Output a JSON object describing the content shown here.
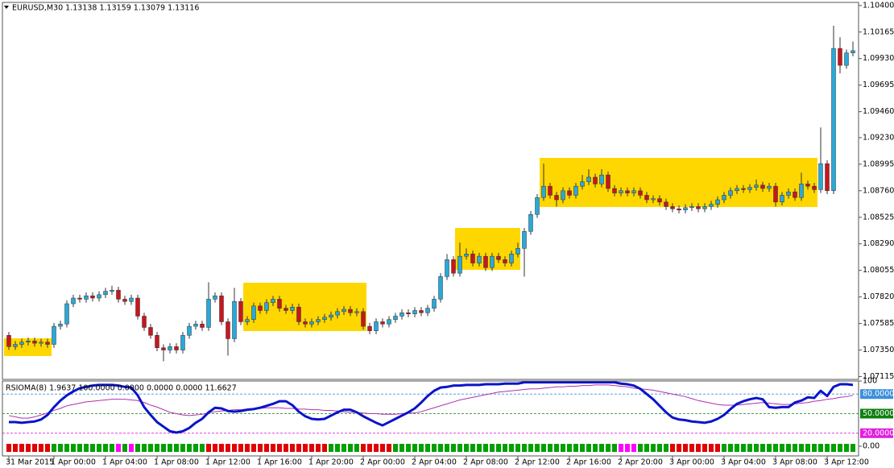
{
  "chart_data": [
    {
      "type": "candlestick",
      "title": "EURUSD,M30  1.13138 1.13159 1.13079 1.13116",
      "categories": [
        "31 Mar 2015",
        null,
        null,
        null,
        null,
        null,
        null,
        "1 Apr 00:00",
        null,
        null,
        null,
        null,
        null,
        null,
        null,
        "1 Apr 04:00",
        null,
        null,
        null,
        null,
        null,
        null,
        null,
        "1 Apr 08:00",
        null,
        null,
        null,
        null,
        null,
        null,
        null,
        "1 Apr 12:00",
        null,
        null,
        null,
        null,
        null,
        null,
        null,
        "1 Apr 16:00",
        null,
        null,
        null,
        null,
        null,
        null,
        null,
        "1 Apr 20:00",
        null,
        null,
        null,
        null,
        null,
        null,
        null,
        "2 Apr 00:00",
        null,
        null,
        null,
        null,
        null,
        null,
        null,
        "2 Apr 04:00",
        null,
        null,
        null,
        null,
        null,
        null,
        null,
        "2 Apr 08:00",
        null,
        null,
        null,
        null,
        null,
        null,
        null,
        "2 Apr 12:00",
        null,
        null,
        null,
        null,
        null,
        null,
        null,
        "2 Apr 16:00",
        null,
        null,
        null,
        null,
        null,
        null,
        null,
        "2 Apr 20:00",
        null,
        null,
        null,
        null,
        null,
        null,
        null,
        "3 Apr 00:00",
        null,
        null,
        null,
        null,
        null,
        null,
        null,
        "3 Apr 04:00",
        null,
        null,
        null,
        null,
        null,
        null,
        null,
        "3 Apr 08:00",
        null,
        null,
        null,
        null,
        null,
        null,
        null,
        "3 Apr 12:00",
        null,
        null,
        null,
        null
      ],
      "open": [
        1.0748,
        1.0738,
        1.074,
        1.0742,
        1.0743,
        1.0741,
        1.0742,
        1.074,
        1.0756,
        1.0758,
        1.0776,
        1.0781,
        1.078,
        1.0783,
        1.0781,
        1.0784,
        1.0787,
        1.0788,
        1.078,
        1.0778,
        1.0781,
        1.0765,
        1.0755,
        1.0748,
        1.0737,
        1.0735,
        1.0738,
        1.0735,
        1.0748,
        1.0756,
        1.0758,
        1.0755,
        1.078,
        1.0783,
        1.076,
        1.0745,
        1.0778,
        1.076,
        1.0762,
        1.0774,
        1.077,
        1.0777,
        1.078,
        1.0772,
        1.077,
        1.0773,
        1.076,
        1.0758,
        1.076,
        1.0762,
        1.0764,
        1.0766,
        1.0769,
        1.0771,
        1.0768,
        1.0769,
        1.0756,
        1.0752,
        1.076,
        1.0758,
        1.0762,
        1.0765,
        1.0768,
        1.0767,
        1.077,
        1.0768,
        1.0772,
        1.078,
        1.08,
        1.0815,
        1.0803,
        1.0818,
        1.082,
        1.0812,
        1.0818,
        1.0808,
        1.0818,
        1.0815,
        1.0812,
        1.082,
        1.0825,
        1.084,
        1.0855,
        1.087,
        1.088,
        1.0872,
        1.0868,
        1.0876,
        1.0872,
        1.088,
        1.0884,
        1.0888,
        1.0882,
        1.089,
        1.0878,
        1.0874,
        1.0876,
        1.0874,
        1.0876,
        1.0872,
        1.0868,
        1.0869,
        1.0866,
        1.0862,
        1.086,
        1.0859,
        1.0861,
        1.0862,
        1.086,
        1.0862,
        1.0864,
        1.0868,
        1.0872,
        1.0876,
        1.0878,
        1.0877,
        1.0879,
        1.0881,
        1.0878,
        1.088,
        1.0866,
        1.0872,
        1.0875,
        1.087,
        1.0882,
        1.088,
        1.0877,
        1.09,
        1.0876,
        1.1002,
        1.0987,
        1.0998
      ],
      "high": [
        1.0751,
        1.0743,
        1.0745,
        1.0746,
        1.0746,
        1.0745,
        1.0745,
        1.0759,
        1.0761,
        1.0779,
        1.0784,
        1.0784,
        1.0786,
        1.0786,
        1.0787,
        1.079,
        1.0792,
        1.0791,
        1.0783,
        1.0784,
        1.0784,
        1.0768,
        1.0758,
        1.0751,
        1.074,
        1.0741,
        1.0741,
        1.0751,
        1.0759,
        1.0761,
        1.0761,
        1.0795,
        1.0786,
        1.0786,
        1.0763,
        1.079,
        1.0781,
        1.0765,
        1.0777,
        1.0777,
        1.078,
        1.0783,
        1.0783,
        1.0775,
        1.0776,
        1.0776,
        1.0763,
        1.0763,
        1.0765,
        1.0767,
        1.0769,
        1.0772,
        1.0774,
        1.0774,
        1.0772,
        1.0772,
        1.0759,
        1.0763,
        1.0763,
        1.0765,
        1.0768,
        1.0771,
        1.0771,
        1.0773,
        1.0773,
        1.0775,
        1.0783,
        1.0803,
        1.082,
        1.0818,
        1.083,
        1.0825,
        1.0823,
        1.0821,
        1.0821,
        1.0821,
        1.0821,
        1.0818,
        1.0823,
        1.083,
        1.0843,
        1.0858,
        1.0873,
        1.09,
        1.0883,
        1.0875,
        1.0879,
        1.0879,
        1.0883,
        1.089,
        1.0895,
        1.0891,
        1.0895,
        1.0893,
        1.0881,
        1.0879,
        1.0879,
        1.0879,
        1.0879,
        1.0875,
        1.0872,
        1.0872,
        1.0869,
        1.0865,
        1.0863,
        1.0864,
        1.0865,
        1.0865,
        1.0865,
        1.0867,
        1.0871,
        1.0875,
        1.0879,
        1.0881,
        1.0881,
        1.0882,
        1.0886,
        1.0884,
        1.0883,
        1.0883,
        1.0875,
        1.0878,
        1.0878,
        1.0892,
        1.0885,
        1.0883,
        1.0932,
        1.0903,
        1.1022,
        1.1012,
        1.1001,
        1.1008
      ],
      "low": [
        1.0735,
        1.0735,
        1.0737,
        1.0739,
        1.0738,
        1.0738,
        1.0737,
        1.0737,
        1.0753,
        1.0755,
        1.0773,
        1.0777,
        1.0777,
        1.0778,
        1.0778,
        1.0781,
        1.0784,
        1.0777,
        1.0775,
        1.0775,
        1.0762,
        1.0752,
        1.0745,
        1.0734,
        1.0725,
        1.0732,
        1.0732,
        1.0732,
        1.0745,
        1.0753,
        1.0752,
        1.0752,
        1.0777,
        1.0757,
        1.073,
        1.0742,
        1.0757,
        1.0757,
        1.0759,
        1.0767,
        1.0767,
        1.0774,
        1.0769,
        1.0767,
        1.0767,
        1.0757,
        1.0755,
        1.0755,
        1.0757,
        1.0759,
        1.0761,
        1.0763,
        1.0766,
        1.0765,
        1.0765,
        1.0753,
        1.0749,
        1.0749,
        1.0755,
        1.0755,
        1.0759,
        1.0762,
        1.0764,
        1.0764,
        1.0765,
        1.0765,
        1.0769,
        1.0777,
        1.0797,
        1.08,
        1.08,
        1.0815,
        1.0809,
        1.0809,
        1.0805,
        1.0805,
        1.0812,
        1.0809,
        1.0809,
        1.0817,
        1.08,
        1.0837,
        1.0852,
        1.0867,
        1.0869,
        1.0862,
        1.0865,
        1.0869,
        1.0869,
        1.0877,
        1.0881,
        1.0879,
        1.0879,
        1.0875,
        1.0871,
        1.0871,
        1.0871,
        1.0871,
        1.0869,
        1.0865,
        1.0865,
        1.0863,
        1.0859,
        1.0857,
        1.0856,
        1.0856,
        1.0858,
        1.0857,
        1.0857,
        1.0859,
        1.0861,
        1.0865,
        1.0869,
        1.0873,
        1.0874,
        1.0874,
        1.0876,
        1.0875,
        1.0875,
        1.0862,
        1.0863,
        1.0869,
        1.0867,
        1.0867,
        1.0877,
        1.0874,
        1.0874,
        1.0873,
        1.0873,
        1.098,
        1.0984,
        1.0995
      ],
      "close": [
        1.0738,
        1.074,
        1.0742,
        1.0743,
        1.0741,
        1.0742,
        1.074,
        1.0756,
        1.0758,
        1.0776,
        1.0781,
        1.078,
        1.0783,
        1.0781,
        1.0784,
        1.0787,
        1.0788,
        1.078,
        1.0778,
        1.0781,
        1.0765,
        1.0755,
        1.0748,
        1.0737,
        1.0735,
        1.0738,
        1.0735,
        1.0748,
        1.0756,
        1.0758,
        1.0755,
        1.078,
        1.0783,
        1.076,
        1.0745,
        1.0778,
        1.076,
        1.0762,
        1.0774,
        1.077,
        1.0777,
        1.078,
        1.0772,
        1.077,
        1.0773,
        1.076,
        1.0758,
        1.076,
        1.0762,
        1.0764,
        1.0766,
        1.0769,
        1.0771,
        1.0768,
        1.0769,
        1.0756,
        1.0752,
        1.076,
        1.0758,
        1.0762,
        1.0765,
        1.0768,
        1.0767,
        1.077,
        1.0768,
        1.0772,
        1.078,
        1.08,
        1.0815,
        1.0803,
        1.0818,
        1.082,
        1.0812,
        1.0818,
        1.0808,
        1.0818,
        1.0815,
        1.0812,
        1.082,
        1.0825,
        1.084,
        1.0855,
        1.087,
        1.088,
        1.0872,
        1.0868,
        1.0876,
        1.0872,
        1.088,
        1.0884,
        1.0888,
        1.0882,
        1.089,
        1.0878,
        1.0874,
        1.0876,
        1.0874,
        1.0876,
        1.0872,
        1.0868,
        1.0869,
        1.0866,
        1.0862,
        1.086,
        1.0859,
        1.0861,
        1.0862,
        1.086,
        1.0862,
        1.0864,
        1.0868,
        1.0872,
        1.0876,
        1.0878,
        1.0877,
        1.0879,
        1.0881,
        1.0878,
        1.088,
        1.0866,
        1.0872,
        1.0875,
        1.087,
        1.0882,
        1.088,
        1.0877,
        1.09,
        1.0876,
        1.1002,
        1.0987,
        1.0998,
        1.1
      ],
      "up_color": "#29a9d9",
      "down_color": "#c8161e",
      "ylim": [
        1.0709,
        1.1042
      ],
      "yticks": [
        {
          "value": 1.104,
          "label": "1.10400"
        },
        {
          "value": 1.10165,
          "label": "1.10165"
        },
        {
          "value": 1.0993,
          "label": "1.09930"
        },
        {
          "value": 1.09695,
          "label": "1.09695"
        },
        {
          "value": 1.0946,
          "label": "1.09460"
        },
        {
          "value": 1.0923,
          "label": "1.09230"
        },
        {
          "value": 1.08995,
          "label": "1.08995"
        },
        {
          "value": 1.0876,
          "label": "1.08760"
        },
        {
          "value": 1.08525,
          "label": "1.08525"
        },
        {
          "value": 1.0829,
          "label": "1.08290"
        },
        {
          "value": 1.08055,
          "label": "1.08055"
        },
        {
          "value": 1.0782,
          "label": "1.07820"
        },
        {
          "value": 1.07585,
          "label": "1.07585"
        },
        {
          "value": 1.0735,
          "label": "1.07350"
        },
        {
          "value": 1.07115,
          "label": "1.07115"
        }
      ]
    },
    {
      "type": "line",
      "title": "RSIOMA(8) 1.9637 100.0000 0.0000 0.0000 0.0000 11.6627",
      "series": [
        {
          "color": "#0a14c8",
          "values": [
            37,
            37,
            36,
            37,
            38,
            41,
            48,
            60,
            70,
            78,
            84,
            89,
            91,
            93,
            94,
            94,
            94,
            93,
            91,
            90,
            78,
            60,
            48,
            37,
            30,
            23,
            21,
            23,
            28,
            36,
            42,
            52,
            59,
            58,
            54,
            53,
            54,
            56,
            57,
            59,
            62,
            65,
            69,
            69,
            63,
            53,
            46,
            42,
            41,
            42,
            47,
            52,
            56,
            56,
            52,
            46,
            41,
            36,
            32,
            37,
            42,
            47,
            52,
            58,
            67,
            77,
            85,
            90,
            91,
            93,
            93,
            94,
            94,
            94,
            95,
            95,
            95,
            96,
            96,
            96,
            98,
            98,
            98,
            98,
            98,
            98,
            98,
            98,
            98,
            98,
            98,
            98,
            98,
            98,
            98,
            96,
            95,
            93,
            88,
            80,
            72,
            62,
            52,
            44,
            41,
            40,
            38,
            37,
            36,
            38,
            42,
            48,
            57,
            65,
            69,
            72,
            74,
            72,
            60,
            59,
            60,
            60,
            67,
            70,
            75,
            74,
            85,
            77,
            91,
            95,
            95,
            94
          ]
        },
        {
          "color": "#b030b0",
          "values": [
            47,
            45,
            43,
            43,
            45,
            48,
            51,
            55,
            58,
            62,
            64,
            66,
            68,
            69,
            70,
            71,
            72,
            72,
            72,
            71,
            70,
            67,
            63,
            60,
            56,
            52,
            50,
            48,
            47,
            48,
            49,
            51,
            53,
            54,
            55,
            56,
            56,
            57,
            58,
            58,
            59,
            59,
            59,
            58,
            58,
            57,
            57,
            56,
            56,
            55,
            55,
            54,
            53,
            52,
            52,
            51,
            50,
            50,
            49,
            49,
            49,
            50,
            51,
            51,
            53,
            56,
            59,
            62,
            65,
            68,
            71,
            73,
            75,
            77,
            79,
            81,
            83,
            84,
            85,
            86,
            87,
            88,
            88,
            89,
            90,
            91,
            91,
            92,
            92,
            93,
            93,
            94,
            94,
            94,
            93,
            92,
            91,
            89,
            88,
            87,
            86,
            84,
            82,
            80,
            78,
            76,
            73,
            70,
            68,
            66,
            64,
            63,
            63,
            63,
            64,
            65,
            66,
            67,
            66,
            65,
            64,
            64,
            65,
            66,
            67,
            69,
            70,
            72,
            73,
            75,
            76,
            78
          ]
        }
      ],
      "signal_colors": [
        "#e00000",
        "#e00000",
        "#e00000",
        "#e00000",
        "#e00000",
        "#e00000",
        "#e00000",
        "#00a000",
        "#00a000",
        "#00a000",
        "#00a000",
        "#00a000",
        "#00a000",
        "#00a000",
        "#00a000",
        "#00a000",
        "#00a000",
        "#ff00ff",
        "#00a000",
        "#ff00ff",
        "#00a000",
        "#00a000",
        "#00a000",
        "#00a000",
        "#00a000",
        "#00a000",
        "#00a000",
        "#00a000",
        "#00a000",
        "#00a000",
        "#00a000",
        "#e00000",
        "#e00000",
        "#e00000",
        "#e00000",
        "#e00000",
        "#e00000",
        "#e00000",
        "#e00000",
        "#e00000",
        "#e00000",
        "#e00000",
        "#e00000",
        "#e00000",
        "#e00000",
        "#e00000",
        "#e00000",
        "#e00000",
        "#e00000",
        "#e00000",
        "#00a000",
        "#00a000",
        "#00a000",
        "#00a000",
        "#00a000",
        "#e00000",
        "#e00000",
        "#e00000",
        "#e00000",
        "#e00000",
        "#00a000",
        "#00a000",
        "#00a000",
        "#00a000",
        "#00a000",
        "#00a000",
        "#00a000",
        "#00a000",
        "#00a000",
        "#00a000",
        "#00a000",
        "#00a000",
        "#00a000",
        "#00a000",
        "#00a000",
        "#00a000",
        "#00a000",
        "#00a000",
        "#00a000",
        "#00a000",
        "#00a000",
        "#00a000",
        "#00a000",
        "#00a000",
        "#00a000",
        "#00a000",
        "#00a000",
        "#00a000",
        "#00a000",
        "#00a000",
        "#00a000",
        "#00a000",
        "#00a000",
        "#00a000",
        "#00a000",
        "#ff00ff",
        "#ff00ff",
        "#ff00ff",
        "#00a000",
        "#00a000",
        "#00a000",
        "#00a000",
        "#00a000",
        "#e00000",
        "#e00000",
        "#e00000",
        "#e00000",
        "#e00000",
        "#e00000",
        "#e00000",
        "#e00000",
        "#00a000",
        "#00a000",
        "#00a000",
        "#00a000",
        "#00a000",
        "#00a000",
        "#00a000",
        "#00a000",
        "#00a000",
        "#00a000",
        "#00a000",
        "#00a000",
        "#00a000",
        "#00a000",
        "#00a000",
        "#00a000",
        "#00a000",
        "#00a000",
        "#00a000",
        "#00a000",
        "#00a000"
      ],
      "ylim": [
        0,
        100
      ],
      "yticks": [
        100,
        {
          "value": 80,
          "label": "80.0000",
          "color": "#3c8fdc"
        },
        {
          "value": 50,
          "label": "50.0000",
          "color": "#108010"
        },
        {
          "value": 20,
          "label": "20.0000",
          "color": "#e020e0"
        },
        {
          "value": 0,
          "label": "0.00"
        }
      ]
    }
  ]
}
